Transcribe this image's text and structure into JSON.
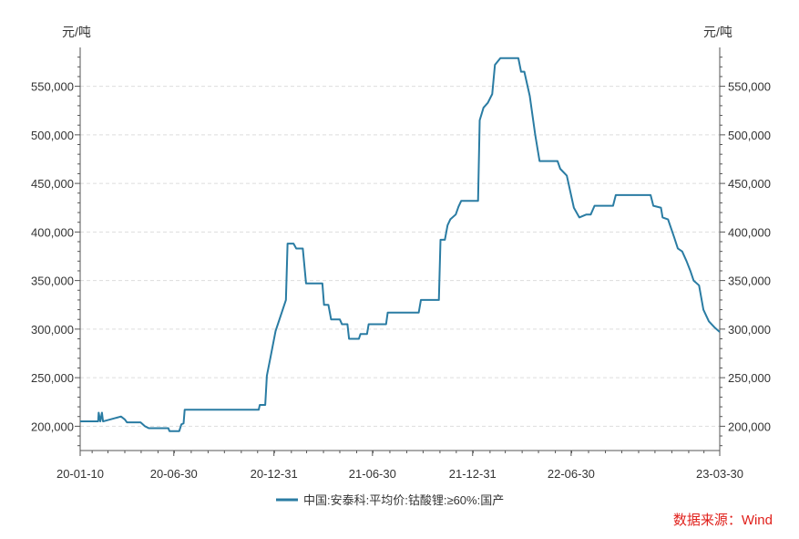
{
  "chart_data": {
    "type": "line",
    "y_unit_left": "元/吨",
    "y_unit_right": "元/吨",
    "ylim": [
      175000,
      590000
    ],
    "y_ticks": [
      200000,
      250000,
      300000,
      350000,
      400000,
      450000,
      500000,
      550000
    ],
    "y_tick_labels": [
      "200,000",
      "250,000",
      "300,000",
      "350,000",
      "400,000",
      "450,000",
      "500,000",
      "550,000"
    ],
    "x_range": [
      "2020-01-10",
      "2023-03-30"
    ],
    "x_ticks": [
      "2020-01-10",
      "2020-06-30",
      "2020-12-31",
      "2021-06-30",
      "2021-12-31",
      "2022-06-30",
      "2023-03-30"
    ],
    "x_tick_labels": [
      "20-01-10",
      "20-06-30",
      "20-12-31",
      "21-06-30",
      "21-12-31",
      "22-06-30",
      "23-03-30"
    ],
    "grid": true,
    "legend_position": "bottom",
    "series": [
      {
        "name": "中国:安泰科:平均价:钴酸锂:≥60%:国产",
        "color": "#2a7ca3",
        "points": [
          [
            "2020-01-10",
            205000
          ],
          [
            "2020-02-12",
            205000
          ],
          [
            "2020-02-13",
            214000
          ],
          [
            "2020-02-16",
            205000
          ],
          [
            "2020-02-19",
            214000
          ],
          [
            "2020-02-21",
            205000
          ],
          [
            "2020-03-25",
            210000
          ],
          [
            "2020-04-01",
            207000
          ],
          [
            "2020-04-05",
            204000
          ],
          [
            "2020-04-30",
            204000
          ],
          [
            "2020-05-08",
            200000
          ],
          [
            "2020-05-15",
            198000
          ],
          [
            "2020-06-10",
            198000
          ],
          [
            "2020-06-20",
            198000
          ],
          [
            "2020-06-22",
            195000
          ],
          [
            "2020-07-10",
            195000
          ],
          [
            "2020-07-14",
            202000
          ],
          [
            "2020-07-18",
            203000
          ],
          [
            "2020-07-20",
            217000
          ],
          [
            "2020-11-08",
            217000
          ],
          [
            "2020-12-03",
            217000
          ],
          [
            "2020-12-05",
            222000
          ],
          [
            "2020-12-15",
            222000
          ],
          [
            "2020-12-18",
            252000
          ],
          [
            "2020-12-25",
            272000
          ],
          [
            "2021-01-03",
            298000
          ],
          [
            "2021-01-22",
            330000
          ],
          [
            "2021-01-25",
            388000
          ],
          [
            "2021-02-05",
            388000
          ],
          [
            "2021-02-10",
            383000
          ],
          [
            "2021-02-22",
            383000
          ],
          [
            "2021-02-28",
            347000
          ],
          [
            "2021-03-30",
            347000
          ],
          [
            "2021-04-02",
            325000
          ],
          [
            "2021-04-10",
            325000
          ],
          [
            "2021-04-15",
            310000
          ],
          [
            "2021-05-01",
            310000
          ],
          [
            "2021-05-05",
            305000
          ],
          [
            "2021-05-15",
            305000
          ],
          [
            "2021-05-18",
            290000
          ],
          [
            "2021-06-05",
            290000
          ],
          [
            "2021-06-08",
            295000
          ],
          [
            "2021-06-20",
            295000
          ],
          [
            "2021-06-23",
            305000
          ],
          [
            "2021-07-25",
            305000
          ],
          [
            "2021-07-28",
            317000
          ],
          [
            "2021-09-23",
            317000
          ],
          [
            "2021-09-27",
            330000
          ],
          [
            "2021-10-30",
            330000
          ],
          [
            "2021-11-02",
            392000
          ],
          [
            "2021-11-10",
            392000
          ],
          [
            "2021-11-15",
            407000
          ],
          [
            "2021-11-20",
            413000
          ],
          [
            "2021-11-30",
            418000
          ],
          [
            "2021-12-05",
            426000
          ],
          [
            "2021-12-10",
            432000
          ],
          [
            "2021-12-15",
            432000
          ],
          [
            "2022-01-10",
            432000
          ],
          [
            "2022-01-13",
            515000
          ],
          [
            "2022-01-20",
            528000
          ],
          [
            "2022-01-28",
            533000
          ],
          [
            "2022-02-05",
            542000
          ],
          [
            "2022-02-10",
            572000
          ],
          [
            "2022-02-20",
            579000
          ],
          [
            "2022-03-25",
            579000
          ],
          [
            "2022-03-30",
            565000
          ],
          [
            "2022-04-05",
            565000
          ],
          [
            "2022-04-15",
            540000
          ],
          [
            "2022-04-25",
            500000
          ],
          [
            "2022-05-03",
            473000
          ],
          [
            "2022-06-05",
            473000
          ],
          [
            "2022-06-10",
            465000
          ],
          [
            "2022-06-22",
            458000
          ],
          [
            "2022-07-05",
            425000
          ],
          [
            "2022-07-15",
            415000
          ],
          [
            "2022-07-28",
            418000
          ],
          [
            "2022-08-05",
            418000
          ],
          [
            "2022-08-12",
            427000
          ],
          [
            "2022-09-15",
            427000
          ],
          [
            "2022-09-20",
            438000
          ],
          [
            "2022-11-23",
            438000
          ],
          [
            "2022-11-28",
            427000
          ],
          [
            "2022-12-12",
            425000
          ],
          [
            "2022-12-15",
            415000
          ],
          [
            "2022-12-25",
            413000
          ],
          [
            "2023-01-05",
            395000
          ],
          [
            "2023-01-12",
            383000
          ],
          [
            "2023-01-20",
            380000
          ],
          [
            "2023-01-28",
            370000
          ],
          [
            "2023-02-04",
            360000
          ],
          [
            "2023-02-10",
            350000
          ],
          [
            "2023-02-20",
            345000
          ],
          [
            "2023-02-28",
            320000
          ],
          [
            "2023-03-10",
            308000
          ],
          [
            "2023-03-20",
            302000
          ],
          [
            "2023-03-30",
            297000
          ]
        ]
      }
    ]
  },
  "source_label": "数据来源：Wind"
}
